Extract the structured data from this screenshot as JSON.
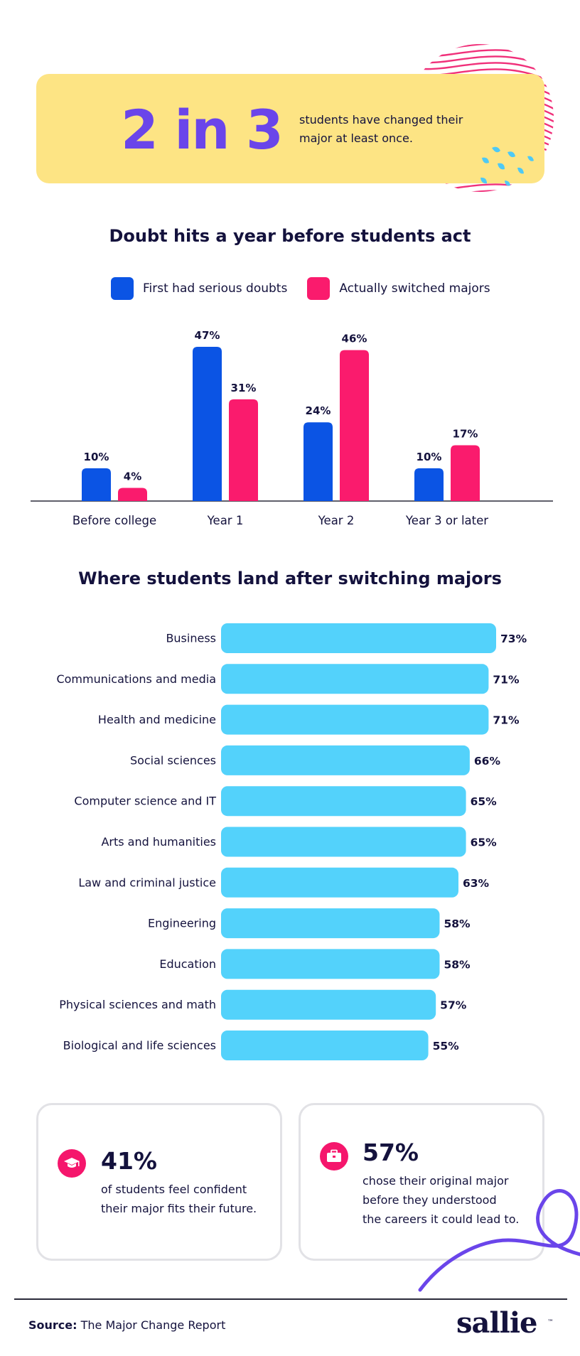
{
  "hero": {
    "stat": "2 in 3",
    "text": "students have changed their major at least once."
  },
  "colors": {
    "doubt": "#0b54e4",
    "switched": "#fa1b6d",
    "landing": "#53d2fb",
    "accent": "#6a45ea",
    "hero_bg": "#fde484",
    "ink": "#14123d"
  },
  "chart_data": [
    {
      "type": "bar",
      "title": "Doubt hits a year before students act",
      "categories": [
        "Before college",
        "Year 1",
        "Year 2",
        "Year 3 or later"
      ],
      "series": [
        {
          "name": "First had serious doubts",
          "values": [
            10,
            47,
            24,
            10
          ],
          "labels": [
            "10%",
            "47%",
            "24%",
            "10%"
          ]
        },
        {
          "name": "Actually switched majors",
          "values": [
            4,
            31,
            46,
            17
          ],
          "labels": [
            "4%",
            "31%",
            "46%",
            "17%"
          ]
        }
      ],
      "ylim": [
        0,
        47
      ],
      "grid": false,
      "legend": "top-center"
    },
    {
      "type": "bar",
      "orientation": "horizontal",
      "title": "Where students land after switching majors",
      "categories": [
        "Business",
        "Communications and media",
        "Health and medicine",
        "Social sciences",
        "Computer science and IT",
        "Arts and humanities",
        "Law and criminal justice",
        "Engineering",
        "Education",
        "Physical sciences and math",
        "Biological and life sciences"
      ],
      "values": [
        73,
        71,
        71,
        66,
        65,
        65,
        63,
        58,
        58,
        57,
        55
      ],
      "labels": [
        "73%",
        "71%",
        "71%",
        "66%",
        "65%",
        "65%",
        "63%",
        "58%",
        "58%",
        "57%",
        "55%"
      ],
      "grid": false
    }
  ],
  "cards": [
    {
      "icon": "graduation-cap-icon",
      "value": "41%",
      "lines": [
        "of students feel confident",
        "their major fits their future."
      ]
    },
    {
      "icon": "briefcase-icon",
      "value": "57%",
      "lines": [
        "chose their original major",
        "before they understood",
        "the careers it could lead to."
      ]
    }
  ],
  "footer": {
    "source_label": "Source:",
    "source_text": " The Major Change Report",
    "brand": "sallie",
    "brand_mark": "™"
  }
}
